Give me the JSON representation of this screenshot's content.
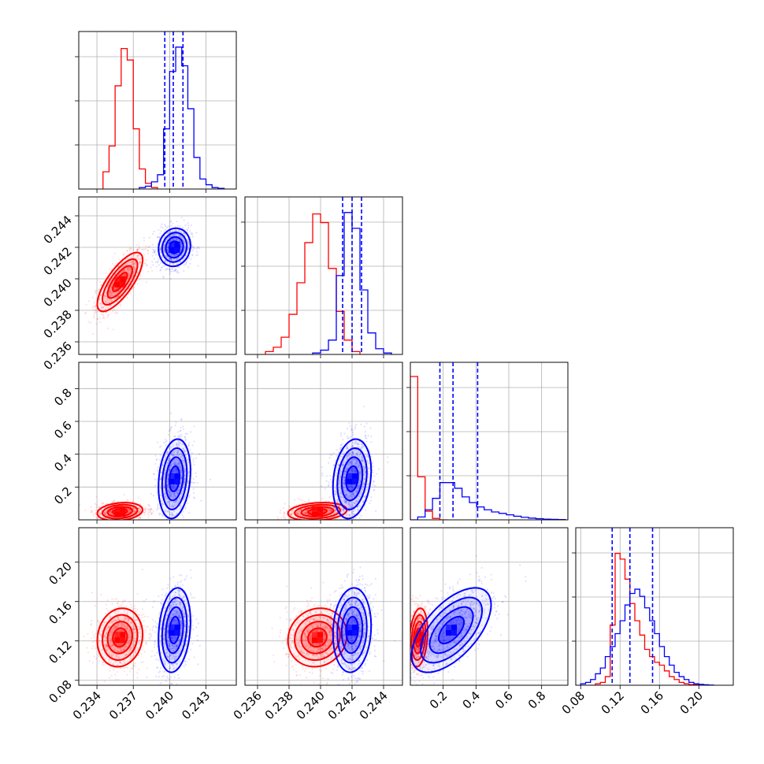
{
  "chart_data": {
    "type": "corner",
    "colors": {
      "red": "#ff0000",
      "blue": "#0000ff"
    },
    "grid": true,
    "parameters": [
      {
        "range": [
          0.2325,
          0.2455
        ],
        "ticks": [
          0.234,
          0.237,
          0.24,
          0.243
        ],
        "tick_labels": [
          "0.234",
          "0.237",
          "0.240",
          "0.243"
        ]
      },
      {
        "range": [
          0.2352,
          0.2452
        ],
        "ticks": [
          0.236,
          0.238,
          0.24,
          0.242,
          0.244
        ],
        "tick_labels": [
          "0.236",
          "0.238",
          "0.240",
          "0.242",
          "0.244"
        ]
      },
      {
        "range": [
          0.0,
          0.96
        ],
        "ticks": [
          0.2,
          0.4,
          0.6,
          0.8
        ],
        "tick_labels": [
          "0.2",
          "0.4",
          "0.6",
          "0.8"
        ]
      },
      {
        "range": [
          0.075,
          0.235
        ],
        "ticks": [
          0.08,
          0.12,
          0.16,
          0.2
        ],
        "tick_labels": [
          "0.08",
          "0.12",
          "0.16",
          "0.20"
        ]
      }
    ],
    "series": [
      {
        "name": "red",
        "color": "#ff0000",
        "mean": [
          0.2359,
          0.2398,
          0.05,
          0.1235
        ],
        "std": [
          0.00085,
          0.00085,
          0.025,
          0.0135
        ],
        "corr": [
          [
            0,
            1,
            0.75
          ],
          [
            0,
            2,
            0.2
          ],
          [
            1,
            2,
            0.2
          ],
          [
            0,
            3,
            0.1
          ],
          [
            1,
            3,
            0.1
          ],
          [
            2,
            3,
            0.2
          ]
        ],
        "quantiles": [],
        "hist": [
          {
            "bins": [
              0.2345,
              0.235,
              0.2355,
              0.236,
              0.2365,
              0.237,
              0.2375,
              0.238,
              0.2385,
              0.239
            ],
            "counts": [
              0.12,
              0.3,
              0.72,
              0.98,
              0.9,
              0.42,
              0.14,
              0.04,
              0.01
            ]
          },
          {
            "bins": [
              0.2365,
              0.237,
              0.2375,
              0.238,
              0.2385,
              0.239,
              0.2395,
              0.24,
              0.2405,
              0.241,
              0.2415,
              0.242,
              0.2425
            ],
            "counts": [
              0.02,
              0.05,
              0.12,
              0.28,
              0.5,
              0.78,
              0.98,
              0.92,
              0.6,
              0.3,
              0.1,
              0.02
            ]
          },
          {
            "bins": [
              0.0,
              0.045,
              0.09,
              0.135,
              0.18,
              0.225
            ],
            "counts": [
              1.0,
              0.3,
              0.06,
              0.01,
              0.0
            ]
          },
          {
            "bins": [
              0.09,
              0.095,
              0.1,
              0.105,
              0.11,
              0.115,
              0.12,
              0.125,
              0.13,
              0.135,
              0.14,
              0.145,
              0.15,
              0.155,
              0.16,
              0.165,
              0.17,
              0.175,
              0.18,
              0.185,
              0.19,
              0.195,
              0.2,
              0.205
            ],
            "counts": [
              0.0,
              0.01,
              0.02,
              0.06,
              0.42,
              0.92,
              0.88,
              0.74,
              0.57,
              0.45,
              0.35,
              0.25,
              0.2,
              0.16,
              0.14,
              0.1,
              0.06,
              0.04,
              0.02,
              0.01,
              0.005,
              0.003,
              0.001
            ]
          }
        ]
      },
      {
        "name": "blue",
        "color": "#0000ff",
        "mean": [
          0.2404,
          0.242,
          0.25,
          0.131
        ],
        "std": [
          0.0006,
          0.00055,
          0.11,
          0.0195
        ],
        "corr": [
          [
            0,
            1,
            0.1
          ],
          [
            0,
            2,
            0.2
          ],
          [
            1,
            2,
            0.2
          ],
          [
            0,
            3,
            0.2
          ],
          [
            1,
            3,
            0.1
          ],
          [
            2,
            3,
            0.6
          ]
        ],
        "quantiles": [
          [
            0.2396,
            0.2403,
            0.2411
          ],
          [
            0.2414,
            0.242,
            0.2426
          ],
          [
            0.18,
            0.26,
            0.41
          ],
          [
            0.112,
            0.13,
            0.153
          ]
        ],
        "hist": [
          {
            "bins": [
              0.2375,
              0.238,
              0.2385,
              0.239,
              0.2395,
              0.24,
              0.2405,
              0.241,
              0.2415,
              0.242,
              0.2425,
              0.243,
              0.2435,
              0.244,
              0.2445
            ],
            "counts": [
              0.01,
              0.02,
              0.05,
              0.1,
              0.42,
              0.82,
              0.99,
              0.86,
              0.56,
              0.22,
              0.07,
              0.03,
              0.01,
              0.005
            ]
          },
          {
            "bins": [
              0.2395,
              0.24,
              0.2405,
              0.241,
              0.2415,
              0.242,
              0.2425,
              0.243,
              0.2435,
              0.244,
              0.2445
            ],
            "counts": [
              0.01,
              0.03,
              0.1,
              0.55,
              0.99,
              0.88,
              0.45,
              0.15,
              0.04,
              0.01
            ]
          },
          {
            "bins": [
              0.0,
              0.045,
              0.09,
              0.135,
              0.18,
              0.225,
              0.27,
              0.315,
              0.36,
              0.405,
              0.45,
              0.495,
              0.54,
              0.585,
              0.63,
              0.675,
              0.72,
              0.765,
              0.81,
              0.855,
              0.9,
              0.945
            ],
            "counts": [
              0.0,
              0.02,
              0.07,
              0.15,
              0.26,
              0.26,
              0.22,
              0.16,
              0.12,
              0.09,
              0.07,
              0.055,
              0.045,
              0.035,
              0.025,
              0.018,
              0.012,
              0.008,
              0.005,
              0.003,
              0.002
            ]
          },
          {
            "bins": [
              0.08,
              0.085,
              0.09,
              0.095,
              0.1,
              0.105,
              0.11,
              0.115,
              0.12,
              0.125,
              0.13,
              0.135,
              0.14,
              0.145,
              0.15,
              0.155,
              0.16,
              0.165,
              0.17,
              0.175,
              0.18,
              0.185,
              0.19,
              0.195,
              0.2,
              0.205,
              0.21,
              0.215
            ],
            "counts": [
              0.01,
              0.02,
              0.04,
              0.08,
              0.12,
              0.2,
              0.27,
              0.36,
              0.45,
              0.56,
              0.64,
              0.67,
              0.62,
              0.54,
              0.45,
              0.36,
              0.27,
              0.2,
              0.14,
              0.09,
              0.06,
              0.04,
              0.02,
              0.01,
              0.006,
              0.003,
              0.001
            ]
          }
        ]
      }
    ]
  }
}
